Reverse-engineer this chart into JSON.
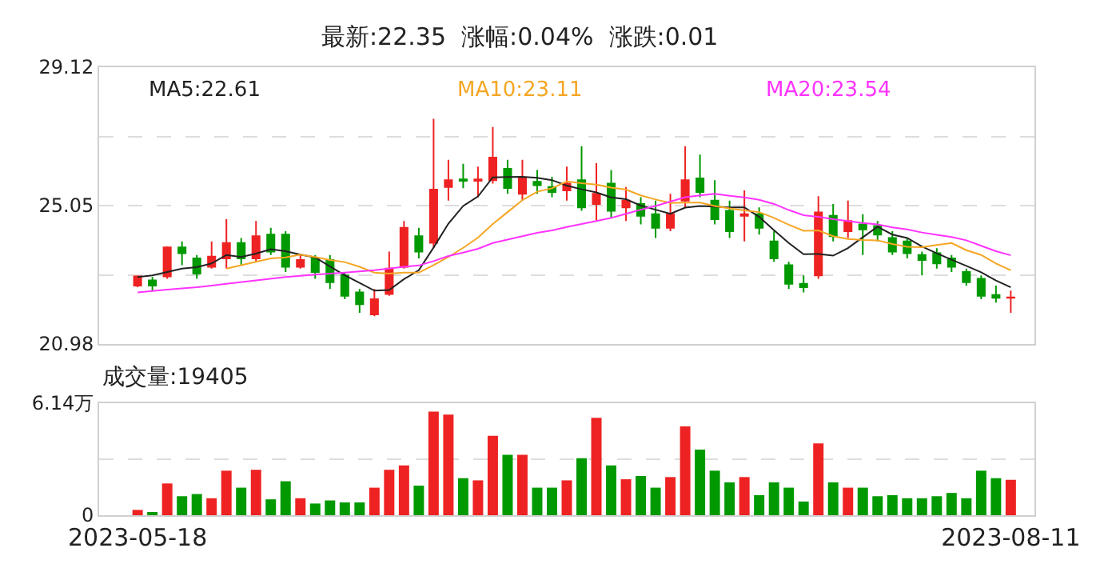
{
  "chart_data": [
    {
      "type": "candlestick",
      "title": "最新:22.35  涨幅:0.04%  涨跌:0.01",
      "categories": [
        "2023-05-18",
        null,
        null,
        null,
        null,
        null,
        null,
        null,
        null,
        null,
        null,
        null,
        null,
        null,
        null,
        null,
        null,
        null,
        null,
        null,
        null,
        null,
        null,
        null,
        null,
        null,
        null,
        null,
        null,
        null,
        null,
        null,
        null,
        null,
        null,
        null,
        null,
        null,
        null,
        null,
        null,
        null,
        null,
        null,
        null,
        null,
        null,
        null,
        null,
        null,
        null,
        null,
        null,
        null,
        null,
        null,
        null,
        null,
        null,
        "2023-08-11"
      ],
      "ohlc": [
        [
          22.7,
          23.0,
          22.65,
          22.97
        ],
        [
          22.85,
          22.95,
          22.55,
          22.7
        ],
        [
          22.97,
          23.85,
          22.9,
          23.82
        ],
        [
          23.82,
          24.0,
          23.3,
          23.65
        ],
        [
          23.5,
          23.6,
          22.9,
          23.05
        ],
        [
          23.25,
          24.0,
          23.2,
          23.55
        ],
        [
          23.5,
          24.65,
          23.2,
          23.95
        ],
        [
          23.95,
          24.1,
          23.3,
          23.5
        ],
        [
          23.5,
          24.6,
          23.4,
          24.15
        ],
        [
          24.2,
          24.4,
          23.6,
          23.7
        ],
        [
          24.2,
          24.3,
          23.1,
          23.25
        ],
        [
          23.25,
          23.6,
          23.2,
          23.45
        ],
        [
          23.5,
          23.6,
          22.9,
          23.1
        ],
        [
          23.45,
          23.6,
          22.6,
          22.8
        ],
        [
          23.0,
          23.1,
          22.3,
          22.4
        ],
        [
          22.5,
          22.6,
          21.9,
          22.15
        ],
        [
          21.85,
          22.6,
          21.8,
          22.3
        ],
        [
          22.45,
          23.7,
          22.4,
          23.2
        ],
        [
          23.25,
          24.6,
          23.2,
          24.4
        ],
        [
          24.15,
          24.4,
          23.5,
          23.7
        ],
        [
          23.96,
          27.6,
          23.8,
          25.52
        ],
        [
          25.6,
          26.4,
          25.2,
          25.8
        ],
        [
          25.82,
          26.28,
          25.56,
          25.78
        ],
        [
          25.78,
          26.2,
          25.3,
          25.82
        ],
        [
          25.8,
          27.36,
          25.7,
          26.46
        ],
        [
          26.13,
          26.4,
          25.4,
          25.57
        ],
        [
          25.4,
          26.4,
          25.2,
          25.85
        ],
        [
          25.75,
          26.1,
          25.4,
          25.65
        ],
        [
          25.6,
          25.9,
          25.3,
          25.45
        ],
        [
          25.5,
          26.2,
          25.2,
          25.7
        ],
        [
          25.8,
          26.8,
          24.9,
          25.0
        ],
        [
          25.1,
          26.3,
          24.6,
          25.4
        ],
        [
          25.7,
          26.1,
          24.7,
          24.9
        ],
        [
          25.0,
          25.6,
          24.6,
          25.2
        ],
        [
          25.1,
          25.3,
          24.5,
          24.75
        ],
        [
          24.8,
          25.2,
          24.1,
          24.4
        ],
        [
          24.4,
          25.4,
          24.3,
          24.8
        ],
        [
          25.2,
          26.8,
          25.0,
          25.8
        ],
        [
          25.85,
          26.55,
          25.3,
          25.45
        ],
        [
          25.2,
          25.8,
          24.5,
          24.65
        ],
        [
          24.9,
          25.2,
          24.1,
          24.3
        ],
        [
          24.75,
          25.5,
          24.0,
          24.8
        ],
        [
          24.8,
          25.0,
          24.2,
          24.4
        ],
        [
          24.0,
          24.3,
          23.4,
          23.5
        ],
        [
          23.3,
          23.4,
          22.6,
          22.75
        ],
        [
          22.75,
          23.0,
          22.5,
          22.65
        ],
        [
          23.0,
          25.33,
          22.9,
          24.85
        ],
        [
          24.75,
          25.1,
          24.0,
          24.15
        ],
        [
          24.3,
          25.2,
          24.1,
          24.6
        ],
        [
          24.5,
          24.8,
          23.6,
          24.35
        ],
        [
          24.45,
          24.6,
          24.0,
          24.2
        ],
        [
          24.1,
          24.3,
          23.6,
          23.7
        ],
        [
          24.0,
          24.1,
          23.5,
          23.65
        ],
        [
          23.6,
          23.7,
          23.0,
          23.45
        ],
        [
          23.65,
          23.8,
          23.2,
          23.35
        ],
        [
          23.5,
          23.6,
          23.1,
          23.25
        ],
        [
          23.1,
          23.2,
          22.7,
          22.8
        ],
        [
          22.9,
          23.0,
          22.3,
          22.4
        ],
        [
          22.42,
          22.7,
          22.2,
          22.34
        ],
        [
          22.34,
          22.55,
          21.9,
          22.35
        ]
      ],
      "colors": [
        "#ee2222",
        "#009900",
        "#ee2222",
        "#009900",
        "#009900",
        "#ee2222",
        "#ee2222",
        "#009900",
        "#ee2222",
        "#009900",
        "#009900",
        "#ee2222",
        "#009900",
        "#009900",
        "#009900",
        "#009900",
        "#ee2222",
        "#ee2222",
        "#ee2222",
        "#009900",
        "#ee2222",
        "#ee2222",
        "#009900",
        "#ee2222",
        "#ee2222",
        "#009900",
        "#ee2222",
        "#009900",
        "#009900",
        "#ee2222",
        "#009900",
        "#ee2222",
        "#009900",
        "#ee2222",
        "#009900",
        "#009900",
        "#ee2222",
        "#ee2222",
        "#009900",
        "#009900",
        "#009900",
        "#ee2222",
        "#009900",
        "#009900",
        "#009900",
        "#009900",
        "#ee2222",
        "#009900",
        "#ee2222",
        "#009900",
        "#009900",
        "#009900",
        "#009900",
        "#009900",
        "#009900",
        "#009900",
        "#009900",
        "#009900",
        "#009900",
        "#ee2222"
      ],
      "series": [
        {
          "name": "MA5:22.61",
          "type": "line",
          "color": "#222222",
          "values": [
            22.95,
            23.0,
            23.1,
            23.2,
            23.24,
            23.35,
            23.6,
            23.54,
            23.64,
            23.77,
            23.71,
            23.61,
            23.53,
            23.26,
            23.0,
            22.78,
            22.55,
            22.57,
            22.89,
            23.15,
            23.82,
            24.52,
            25.04,
            25.32,
            25.88,
            25.89,
            25.9,
            25.87,
            25.8,
            25.64,
            25.53,
            25.44,
            25.29,
            25.24,
            25.05,
            24.93,
            24.81,
            24.99,
            25.04,
            25.02,
            25.0,
            25.0,
            24.72,
            24.33,
            23.95,
            23.62,
            23.63,
            23.58,
            23.8,
            24.12,
            24.43,
            24.2,
            24.1,
            23.85,
            23.65,
            23.46,
            23.28,
            23.09,
            22.85,
            22.65
          ]
        },
        {
          "name": "MA10:23.11",
          "type": "line",
          "color": "#f5a623",
          "values": [
            null,
            null,
            null,
            null,
            null,
            null,
            23.2,
            23.3,
            23.4,
            23.5,
            23.53,
            23.61,
            23.54,
            23.45,
            23.39,
            23.25,
            23.08,
            23.05,
            23.08,
            23.08,
            23.3,
            23.54,
            23.81,
            24.11,
            24.51,
            24.86,
            25.21,
            25.46,
            25.56,
            25.76,
            25.71,
            25.67,
            25.58,
            25.52,
            25.35,
            25.23,
            25.13,
            25.14,
            25.14,
            25.04,
            24.97,
            24.91,
            24.86,
            24.69,
            24.49,
            24.31,
            24.32,
            24.15,
            24.07,
            24.04,
            24.03,
            23.92,
            23.84,
            23.83,
            23.89,
            23.95,
            23.74,
            23.6,
            23.35,
            23.15
          ]
        },
        {
          "name": "MA20:23.54",
          "type": "line",
          "color": "#ff33ff",
          "values": [
            22.5,
            null,
            22.58,
            null,
            22.65,
            null,
            22.75,
            null,
            22.85,
            null,
            22.95,
            null,
            23.02,
            null,
            23.08,
            null,
            23.15,
            null,
            23.25,
            23.29,
            23.42,
            23.57,
            23.67,
            23.78,
            23.95,
            24.05,
            24.15,
            24.25,
            24.32,
            24.42,
            24.51,
            24.6,
            24.69,
            24.81,
            24.93,
            25.04,
            25.17,
            25.3,
            25.35,
            25.4,
            25.34,
            25.29,
            25.22,
            25.1,
            24.92,
            24.77,
            24.72,
            24.65,
            24.6,
            24.54,
            24.5,
            24.41,
            24.35,
            24.26,
            24.19,
            24.13,
            24.03,
            23.87,
            23.71,
            23.59
          ]
        }
      ],
      "ylim": [
        20.98,
        29.12
      ],
      "yticks": [
        20.98,
        {
          "value": 23.015,
          "label": null
        },
        25.05,
        {
          "value": 27.085,
          "label": null
        },
        29.12
      ],
      "grid": "y",
      "tick_labels": "y"
    },
    {
      "type": "bar",
      "title": "成交量:19405",
      "categories": [
        "2023-05-18",
        null,
        null,
        null,
        null,
        null,
        null,
        null,
        null,
        null,
        null,
        null,
        null,
        null,
        null,
        null,
        null,
        null,
        null,
        null,
        null,
        null,
        null,
        null,
        null,
        null,
        null,
        null,
        null,
        null,
        null,
        null,
        null,
        null,
        null,
        null,
        null,
        null,
        null,
        null,
        null,
        null,
        null,
        null,
        null,
        null,
        null,
        null,
        null,
        null,
        null,
        null,
        null,
        null,
        null,
        null,
        null,
        null,
        null,
        "2023-08-11"
      ],
      "values": [
        0.29,
        0.17,
        1.74,
        1.04,
        1.16,
        0.93,
        2.44,
        1.51,
        2.49,
        0.87,
        1.86,
        0.93,
        0.64,
        0.81,
        0.7,
        0.7,
        1.51,
        2.49,
        2.73,
        1.62,
        5.68,
        5.51,
        2.03,
        1.91,
        4.35,
        3.31,
        3.31,
        1.51,
        1.51,
        1.91,
        3.13,
        5.34,
        2.73,
        1.97,
        2.15,
        1.51,
        2.09,
        4.87,
        3.6,
        2.44,
        1.8,
        2.09,
        1.1,
        1.8,
        1.51,
        0.75,
        3.94,
        1.8,
        1.51,
        1.51,
        1.04,
        1.1,
        0.93,
        0.93,
        1.04,
        1.22,
        0.93,
        2.44,
        2.03,
        1.94
      ],
      "colors": [
        "#ee2222",
        "#009900",
        "#ee2222",
        "#009900",
        "#009900",
        "#ee2222",
        "#ee2222",
        "#009900",
        "#ee2222",
        "#009900",
        "#009900",
        "#ee2222",
        "#009900",
        "#009900",
        "#009900",
        "#009900",
        "#ee2222",
        "#ee2222",
        "#ee2222",
        "#009900",
        "#ee2222",
        "#ee2222",
        "#009900",
        "#ee2222",
        "#ee2222",
        "#009900",
        "#ee2222",
        "#009900",
        "#009900",
        "#ee2222",
        "#009900",
        "#ee2222",
        "#009900",
        "#ee2222",
        "#009900",
        "#009900",
        "#ee2222",
        "#ee2222",
        "#009900",
        "#009900",
        "#009900",
        "#ee2222",
        "#009900",
        "#009900",
        "#009900",
        "#009900",
        "#ee2222",
        "#009900",
        "#ee2222",
        "#009900",
        "#009900",
        "#009900",
        "#009900",
        "#009900",
        "#009900",
        "#009900",
        "#009900",
        "#009900",
        "#009900",
        "#ee2222"
      ],
      "ylim": [
        0,
        6.14
      ],
      "yticks": [
        0,
        {
          "value": 3.07,
          "label": null
        },
        {
          "value": 6.14,
          "label": "6.14万"
        }
      ],
      "grid": "y"
    }
  ]
}
